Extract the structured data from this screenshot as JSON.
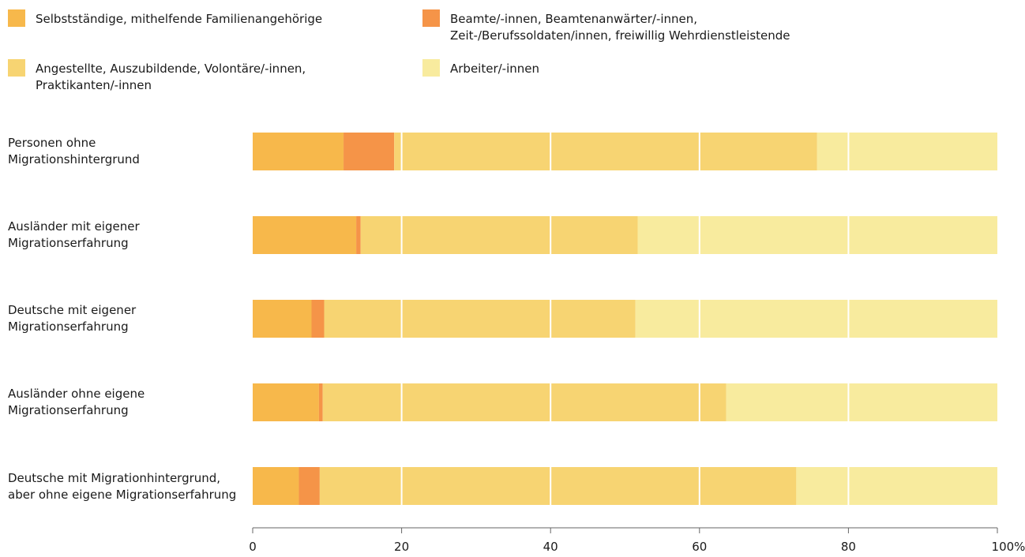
{
  "chart_data": {
    "type": "bar",
    "orientation": "horizontal",
    "stacked": true,
    "categories": [
      "Personen ohne\nMigrationshintergrund",
      "Ausländer mit eigener\nMigrationserfahrung",
      "Deutsche mit eigener\nMigrationserfahrung",
      "Ausländer ohne eigene\nMigrationserfahrung",
      "Deutsche mit Migrationhintergrund,\naber ohne eigene Migrationserfahrung"
    ],
    "series": [
      {
        "name": "Selbstständige, mithelfende Familienangehörige",
        "color": "#f7b84b",
        "values": [
          12.2,
          13.9,
          7.9,
          8.9,
          6.2
        ]
      },
      {
        "name": "Beamte/-innen, Beamtenanwärter/-innen,\nZeit-/Berufssoldaten/innen, freiwillig Wehrdienstleistende",
        "color": "#f59448",
        "values": [
          6.8,
          0.6,
          1.7,
          0.5,
          2.8
        ]
      },
      {
        "name": "Angestellte, Auszubildende, Volontäre/-innen,\nPraktikanten/-innen",
        "color": "#f7d472",
        "values": [
          56.8,
          37.2,
          41.8,
          54.2,
          64.0
        ]
      },
      {
        "name": "Arbeiter/-innen",
        "color": "#f8eb9e",
        "values": [
          24.2,
          48.3,
          48.6,
          36.4,
          27.0
        ]
      }
    ],
    "x_ticks": [
      "0",
      "20",
      "40",
      "60",
      "80",
      "100%"
    ],
    "xlim": [
      0,
      100
    ],
    "grid": true,
    "legend_position": "top"
  }
}
